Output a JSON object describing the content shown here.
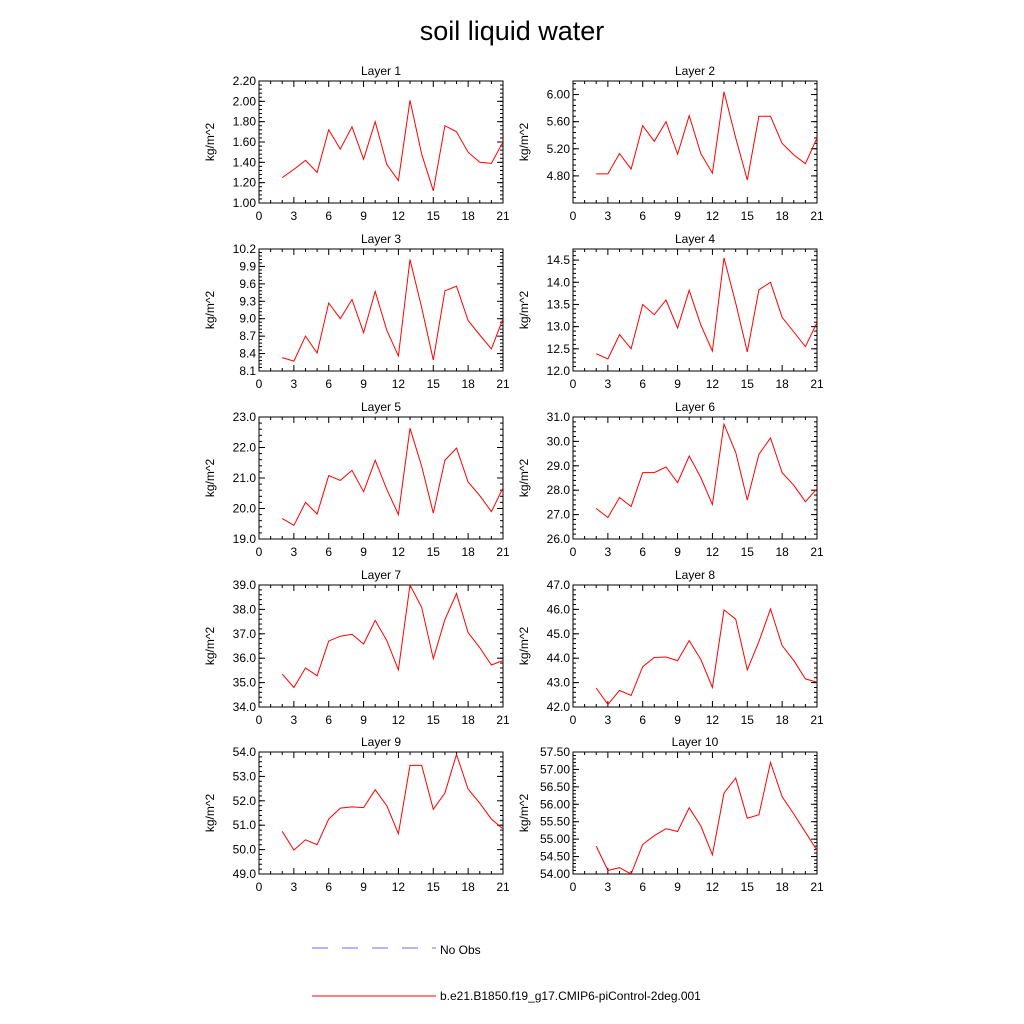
{
  "title": "soil liquid water",
  "colors": {
    "model": "#ff0000",
    "obs": "#6b6bff",
    "axis": "#000000"
  },
  "legend": {
    "obs_label": "No Obs",
    "model_label": "b.e21.B1850.f19_g17.CMIP6-piControl-2deg.001"
  },
  "chart_data": [
    {
      "type": "line",
      "title": "Layer 1",
      "xlabel": "",
      "ylabel": "kg/m^2",
      "xlim": [
        0,
        21
      ],
      "xticks": [
        "0",
        "3",
        "6",
        "9",
        "12",
        "15",
        "18",
        "21"
      ],
      "ylim": [
        1.0,
        2.2
      ],
      "yticks": [
        "1.00",
        "1.20",
        "1.40",
        "1.60",
        "1.80",
        "2.00",
        "2.20"
      ],
      "x": [
        2,
        3,
        4,
        5,
        6,
        7,
        8,
        9,
        10,
        11,
        12,
        13,
        14,
        15,
        16,
        17,
        18,
        19,
        20,
        21
      ],
      "y": [
        1.25,
        1.33,
        1.42,
        1.3,
        1.72,
        1.53,
        1.75,
        1.43,
        1.8,
        1.38,
        1.22,
        2.01,
        1.48,
        1.12,
        1.76,
        1.7,
        1.5,
        1.4,
        1.39,
        1.6
      ]
    },
    {
      "type": "line",
      "title": "Layer 2",
      "xlabel": "",
      "ylabel": "kg/m^2",
      "xlim": [
        0,
        21
      ],
      "xticks": [
        "0",
        "3",
        "6",
        "9",
        "12",
        "15",
        "18",
        "21"
      ],
      "ylim": [
        4.4,
        6.2
      ],
      "yticks": [
        "4.80",
        "5.20",
        "5.60",
        "6.00"
      ],
      "x": [
        2,
        3,
        4,
        5,
        6,
        7,
        8,
        9,
        10,
        11,
        12,
        13,
        14,
        15,
        16,
        17,
        18,
        19,
        20,
        21
      ],
      "y": [
        4.83,
        4.83,
        5.13,
        4.9,
        5.54,
        5.31,
        5.6,
        5.12,
        5.69,
        5.13,
        4.84,
        6.04,
        5.36,
        4.74,
        5.68,
        5.68,
        5.28,
        5.11,
        4.98,
        5.36
      ]
    },
    {
      "type": "line",
      "title": "Layer 3",
      "xlabel": "",
      "ylabel": "kg/m^2",
      "xlim": [
        0,
        21
      ],
      "xticks": [
        "0",
        "3",
        "6",
        "9",
        "12",
        "15",
        "18",
        "21"
      ],
      "ylim": [
        8.1,
        10.2
      ],
      "yticks": [
        "8.1",
        "8.4",
        "8.7",
        "9.0",
        "9.3",
        "9.6",
        "9.9",
        "10.2"
      ],
      "x": [
        2,
        3,
        4,
        5,
        6,
        7,
        8,
        9,
        10,
        11,
        12,
        13,
        14,
        15,
        16,
        17,
        18,
        19,
        20,
        21
      ],
      "y": [
        8.33,
        8.27,
        8.7,
        8.41,
        9.27,
        9.0,
        9.33,
        8.76,
        9.47,
        8.8,
        8.36,
        10.02,
        9.19,
        8.29,
        9.48,
        9.56,
        8.97,
        8.72,
        8.48,
        9.0
      ]
    },
    {
      "type": "line",
      "title": "Layer 4",
      "xlabel": "",
      "ylabel": "kg/m^2",
      "xlim": [
        0,
        21
      ],
      "xticks": [
        "0",
        "3",
        "6",
        "9",
        "12",
        "15",
        "18",
        "21"
      ],
      "ylim": [
        12.0,
        14.75
      ],
      "yticks": [
        "12.0",
        "12.5",
        "13.0",
        "13.5",
        "14.0",
        "14.5"
      ],
      "x": [
        2,
        3,
        4,
        5,
        6,
        7,
        8,
        9,
        10,
        11,
        12,
        13,
        14,
        15,
        16,
        17,
        18,
        19,
        20,
        21
      ],
      "y": [
        12.39,
        12.27,
        12.82,
        12.5,
        13.5,
        13.27,
        13.6,
        12.97,
        13.82,
        13.04,
        12.45,
        14.55,
        13.53,
        12.43,
        13.83,
        14.0,
        13.21,
        12.88,
        12.55,
        13.09
      ]
    },
    {
      "type": "line",
      "title": "Layer 5",
      "xlabel": "",
      "ylabel": "kg/m^2",
      "xlim": [
        0,
        21
      ],
      "xticks": [
        "0",
        "3",
        "6",
        "9",
        "12",
        "15",
        "18",
        "21"
      ],
      "ylim": [
        19.0,
        23.0
      ],
      "yticks": [
        "19.0",
        "20.0",
        "21.0",
        "22.0",
        "23.0"
      ],
      "x": [
        2,
        3,
        4,
        5,
        6,
        7,
        8,
        9,
        10,
        11,
        12,
        13,
        14,
        15,
        16,
        17,
        18,
        19,
        20,
        21
      ],
      "y": [
        19.67,
        19.45,
        20.2,
        19.82,
        21.08,
        20.92,
        21.25,
        20.55,
        21.58,
        20.63,
        19.8,
        22.63,
        21.38,
        19.85,
        21.58,
        21.98,
        20.87,
        20.42,
        19.9,
        20.68
      ]
    },
    {
      "type": "line",
      "title": "Layer 6",
      "xlabel": "",
      "ylabel": "kg/m^2",
      "xlim": [
        0,
        21
      ],
      "xticks": [
        "0",
        "3",
        "6",
        "9",
        "12",
        "15",
        "18",
        "21"
      ],
      "ylim": [
        26.0,
        31.0
      ],
      "yticks": [
        "26.0",
        "27.0",
        "28.0",
        "29.0",
        "30.0",
        "31.0"
      ],
      "x": [
        2,
        3,
        4,
        5,
        6,
        7,
        8,
        9,
        10,
        11,
        12,
        13,
        14,
        15,
        16,
        17,
        18,
        19,
        20,
        21
      ],
      "y": [
        27.25,
        26.88,
        27.7,
        27.33,
        28.72,
        28.72,
        28.95,
        28.31,
        29.4,
        28.52,
        27.41,
        30.71,
        29.55,
        27.6,
        29.47,
        30.14,
        28.72,
        28.2,
        27.53,
        28.06
      ]
    },
    {
      "type": "line",
      "title": "Layer 7",
      "xlabel": "",
      "ylabel": "kg/m^2",
      "xlim": [
        0,
        21
      ],
      "xticks": [
        "0",
        "3",
        "6",
        "9",
        "12",
        "15",
        "18",
        "21"
      ],
      "ylim": [
        34.0,
        39.0
      ],
      "yticks": [
        "34.0",
        "35.0",
        "36.0",
        "37.0",
        "38.0",
        "39.0"
      ],
      "x": [
        2,
        3,
        4,
        5,
        6,
        7,
        8,
        9,
        10,
        11,
        12,
        13,
        14,
        15,
        16,
        17,
        18,
        19,
        20,
        21
      ],
      "y": [
        35.35,
        34.8,
        35.6,
        35.28,
        36.7,
        36.9,
        36.98,
        36.58,
        37.55,
        36.72,
        35.52,
        39.0,
        38.08,
        35.98,
        37.58,
        38.65,
        37.05,
        36.43,
        35.72,
        35.9
      ]
    },
    {
      "type": "line",
      "title": "Layer 8",
      "xlabel": "",
      "ylabel": "kg/m^2",
      "xlim": [
        0,
        21
      ],
      "xticks": [
        "0",
        "3",
        "6",
        "9",
        "12",
        "15",
        "18",
        "21"
      ],
      "ylim": [
        42.0,
        47.0
      ],
      "yticks": [
        "42.0",
        "43.0",
        "44.0",
        "45.0",
        "46.0",
        "47.0"
      ],
      "x": [
        2,
        3,
        4,
        5,
        6,
        7,
        8,
        9,
        10,
        11,
        12,
        13,
        14,
        15,
        16,
        17,
        18,
        19,
        20,
        21
      ],
      "y": [
        42.78,
        42.1,
        42.68,
        42.47,
        43.65,
        44.03,
        44.05,
        43.9,
        44.72,
        43.95,
        42.8,
        45.98,
        45.6,
        43.52,
        44.68,
        46.02,
        44.52,
        43.9,
        43.15,
        43.02
      ]
    },
    {
      "type": "line",
      "title": "Layer 9",
      "xlabel": "",
      "ylabel": "kg/m^2",
      "xlim": [
        0,
        21
      ],
      "xticks": [
        "0",
        "3",
        "6",
        "9",
        "12",
        "15",
        "18",
        "21"
      ],
      "ylim": [
        49.0,
        54.0
      ],
      "yticks": [
        "49.0",
        "50.0",
        "51.0",
        "52.0",
        "53.0",
        "54.0"
      ],
      "x": [
        2,
        3,
        4,
        5,
        6,
        7,
        8,
        9,
        10,
        11,
        12,
        13,
        14,
        15,
        16,
        17,
        18,
        19,
        20,
        21
      ],
      "y": [
        50.75,
        49.98,
        50.4,
        50.2,
        51.25,
        51.7,
        51.75,
        51.72,
        52.45,
        51.8,
        50.65,
        53.45,
        53.45,
        51.65,
        52.32,
        53.9,
        52.48,
        51.9,
        51.25,
        50.85
      ]
    },
    {
      "type": "line",
      "title": "Layer 10",
      "xlabel": "",
      "ylabel": "kg/m^2",
      "xlim": [
        0,
        21
      ],
      "xticks": [
        "0",
        "3",
        "6",
        "9",
        "12",
        "15",
        "18",
        "21"
      ],
      "ylim": [
        54.0,
        57.5
      ],
      "yticks": [
        "54.00",
        "54.50",
        "55.00",
        "55.50",
        "56.00",
        "56.50",
        "57.00",
        "57.50"
      ],
      "x": [
        2,
        3,
        4,
        5,
        6,
        7,
        8,
        9,
        10,
        11,
        12,
        13,
        14,
        15,
        16,
        17,
        18,
        19,
        20,
        21
      ],
      "y": [
        54.8,
        54.1,
        54.18,
        54.0,
        54.85,
        55.1,
        55.3,
        55.22,
        55.9,
        55.38,
        54.55,
        56.32,
        56.75,
        55.6,
        55.7,
        57.2,
        56.22,
        55.72,
        55.2,
        54.68
      ]
    }
  ]
}
